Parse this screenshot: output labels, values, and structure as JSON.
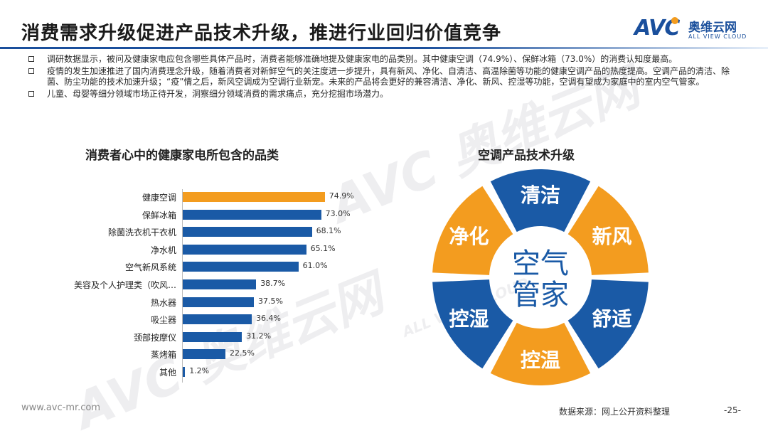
{
  "header": {
    "title": "消费需求升级促进产品技术升级，推进行业回归价值竞争",
    "logo_brand": "AVC",
    "logo_cn": "奥维云网",
    "logo_en": "ALL VIEW CLOUD"
  },
  "bullets": [
    "调研数据显示，被问及健康家电应包含哪些具体产品时，消费者能够准确地提及健康家电的品类别。其中健康空调（74.9%）、保鲜冰箱（73.0%）的消费认知度最高。",
    "疫情的发生加速推进了国内消费理念升级，随着消费者对新鲜空气的关注度进一步提升，具有新风、净化、自清洁、高温除菌等功能的健康空调产品的热度提高。空调产品的清洁、除菌、防尘功能的技术加速升级；“疫”情之后，新风空调成为空调行业新宠。未来的产品将会更好的兼容清洁、净化、新风、控湿等功能，空调有望成为家庭中的室内空气管家。",
    "儿童、母婴等细分领域市场正待开发，洞察细分领域消费的需求痛点，充分挖掘市场潜力。"
  ],
  "watermark": {
    "brand": "AVC",
    "cn": "奥维云网",
    "en": "ALL VIEW CLOUD"
  },
  "chart_data": {
    "type": "bar",
    "orientation": "horizontal",
    "title": "消费者心中的健康家电所包含的品类",
    "categories": [
      "健康空调",
      "保鲜冰箱",
      "除菌洗衣机干衣机",
      "净水机",
      "空气新风系统",
      "美容及个人护理类（吹风…",
      "热水器",
      "吸尘器",
      "颈部按摩仪",
      "蒸烤箱",
      "其他"
    ],
    "values": [
      74.9,
      73.0,
      68.1,
      65.1,
      61.0,
      38.7,
      37.5,
      36.4,
      31.2,
      22.5,
      1.2
    ],
    "value_labels": [
      "74.9%",
      "73.0%",
      "68.1%",
      "65.1%",
      "61.0%",
      "38.7%",
      "37.5%",
      "36.4%",
      "31.2%",
      "22.5%",
      "1.2%"
    ],
    "highlight_index": 0,
    "colors": {
      "highlight": "#f39c1f",
      "default": "#1a5aa6"
    },
    "xlim": [
      0,
      100
    ]
  },
  "wheel": {
    "title": "空调产品技术升级",
    "center_line1": "空气",
    "center_line2": "管家",
    "segments": [
      {
        "label": "清洁",
        "color": "#1a5aa6"
      },
      {
        "label": "新风",
        "color": "#f39c1f"
      },
      {
        "label": "舒适",
        "color": "#1a5aa6"
      },
      {
        "label": "控温",
        "color": "#f39c1f"
      },
      {
        "label": "控湿",
        "color": "#1a5aa6"
      },
      {
        "label": "净化",
        "color": "#f39c1f"
      }
    ],
    "center_text_color": "#1a5aa6"
  },
  "footer": {
    "url": "www.avc-mr.com",
    "source": "数据来源：网上公开资料整理",
    "page": "-25-"
  }
}
